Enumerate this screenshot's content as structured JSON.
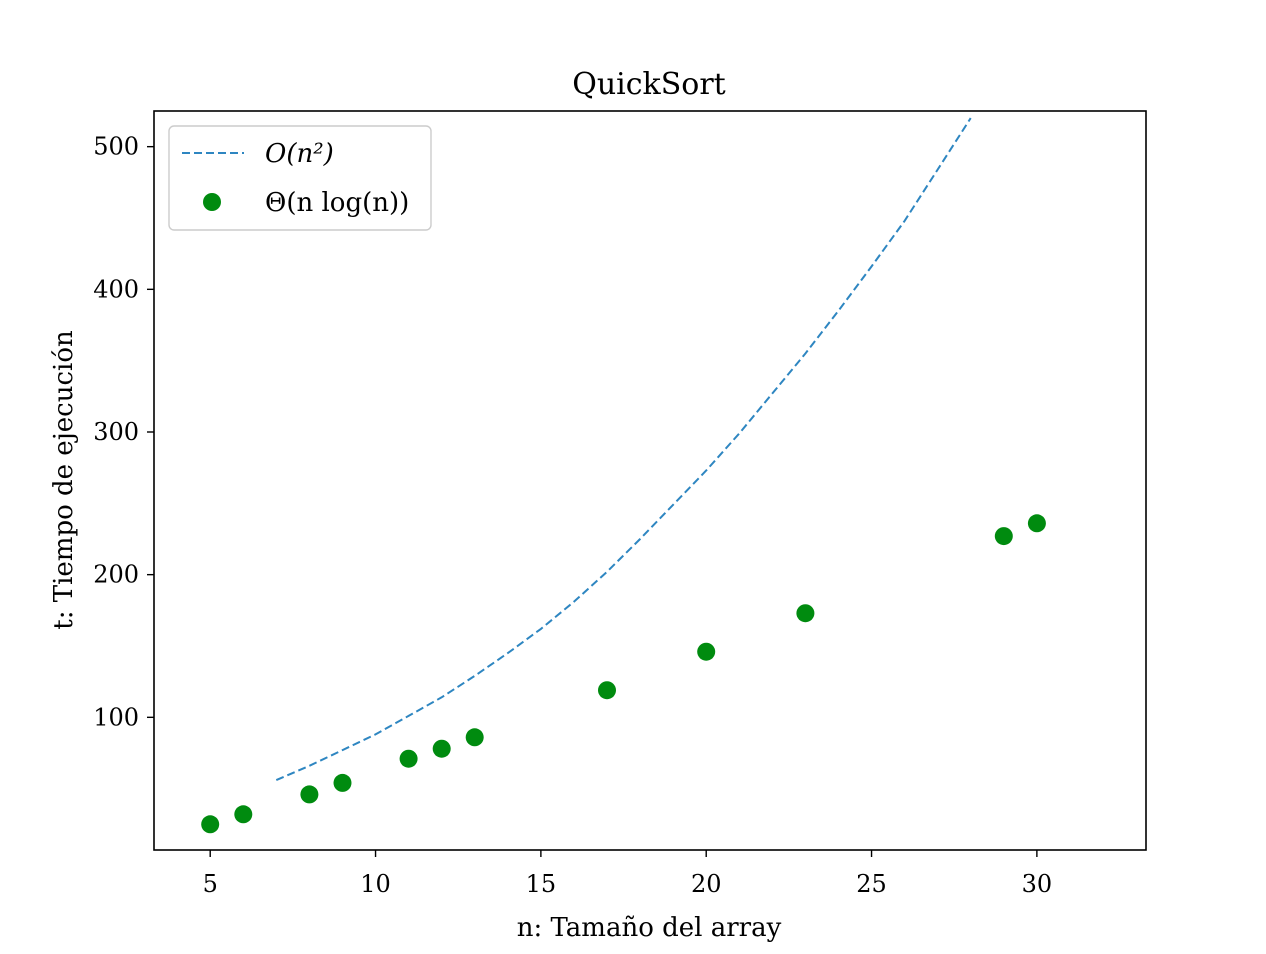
{
  "chart_data": {
    "type": "scatter",
    "title": "QuickSort",
    "xlabel": "n: Tamaño del array",
    "ylabel": "t: Tiempo de ejecución",
    "xlim": [
      3.3,
      33.3
    ],
    "ylim": [
      7,
      525
    ],
    "xticks": [
      5,
      10,
      15,
      20,
      25,
      30
    ],
    "yticks": [
      100,
      200,
      300,
      400,
      500
    ],
    "grid": false,
    "legend_position": "top-left",
    "series": [
      {
        "name": "O(n²)",
        "kind": "line",
        "style": "dashed",
        "color": "#2e86c1",
        "x": [
          7,
          8,
          9,
          10,
          11,
          12,
          13,
          14,
          15,
          16,
          17,
          18,
          19,
          20,
          21,
          22,
          23,
          24,
          25,
          26,
          27,
          28
        ],
        "y": [
          56,
          66,
          77,
          88,
          101,
          114,
          129,
          145,
          162,
          181,
          202,
          225,
          249,
          273,
          299,
          327,
          355,
          385,
          416,
          448,
          484,
          520
        ]
      },
      {
        "name": "Θ(n log(n))",
        "kind": "scatter",
        "color": "#008b0f",
        "x": [
          5,
          6,
          8,
          9,
          11,
          12,
          13,
          17,
          20,
          23,
          29,
          30
        ],
        "y": [
          25,
          32,
          46,
          54,
          71,
          78,
          86,
          119,
          146,
          173,
          227,
          236
        ]
      }
    ]
  }
}
